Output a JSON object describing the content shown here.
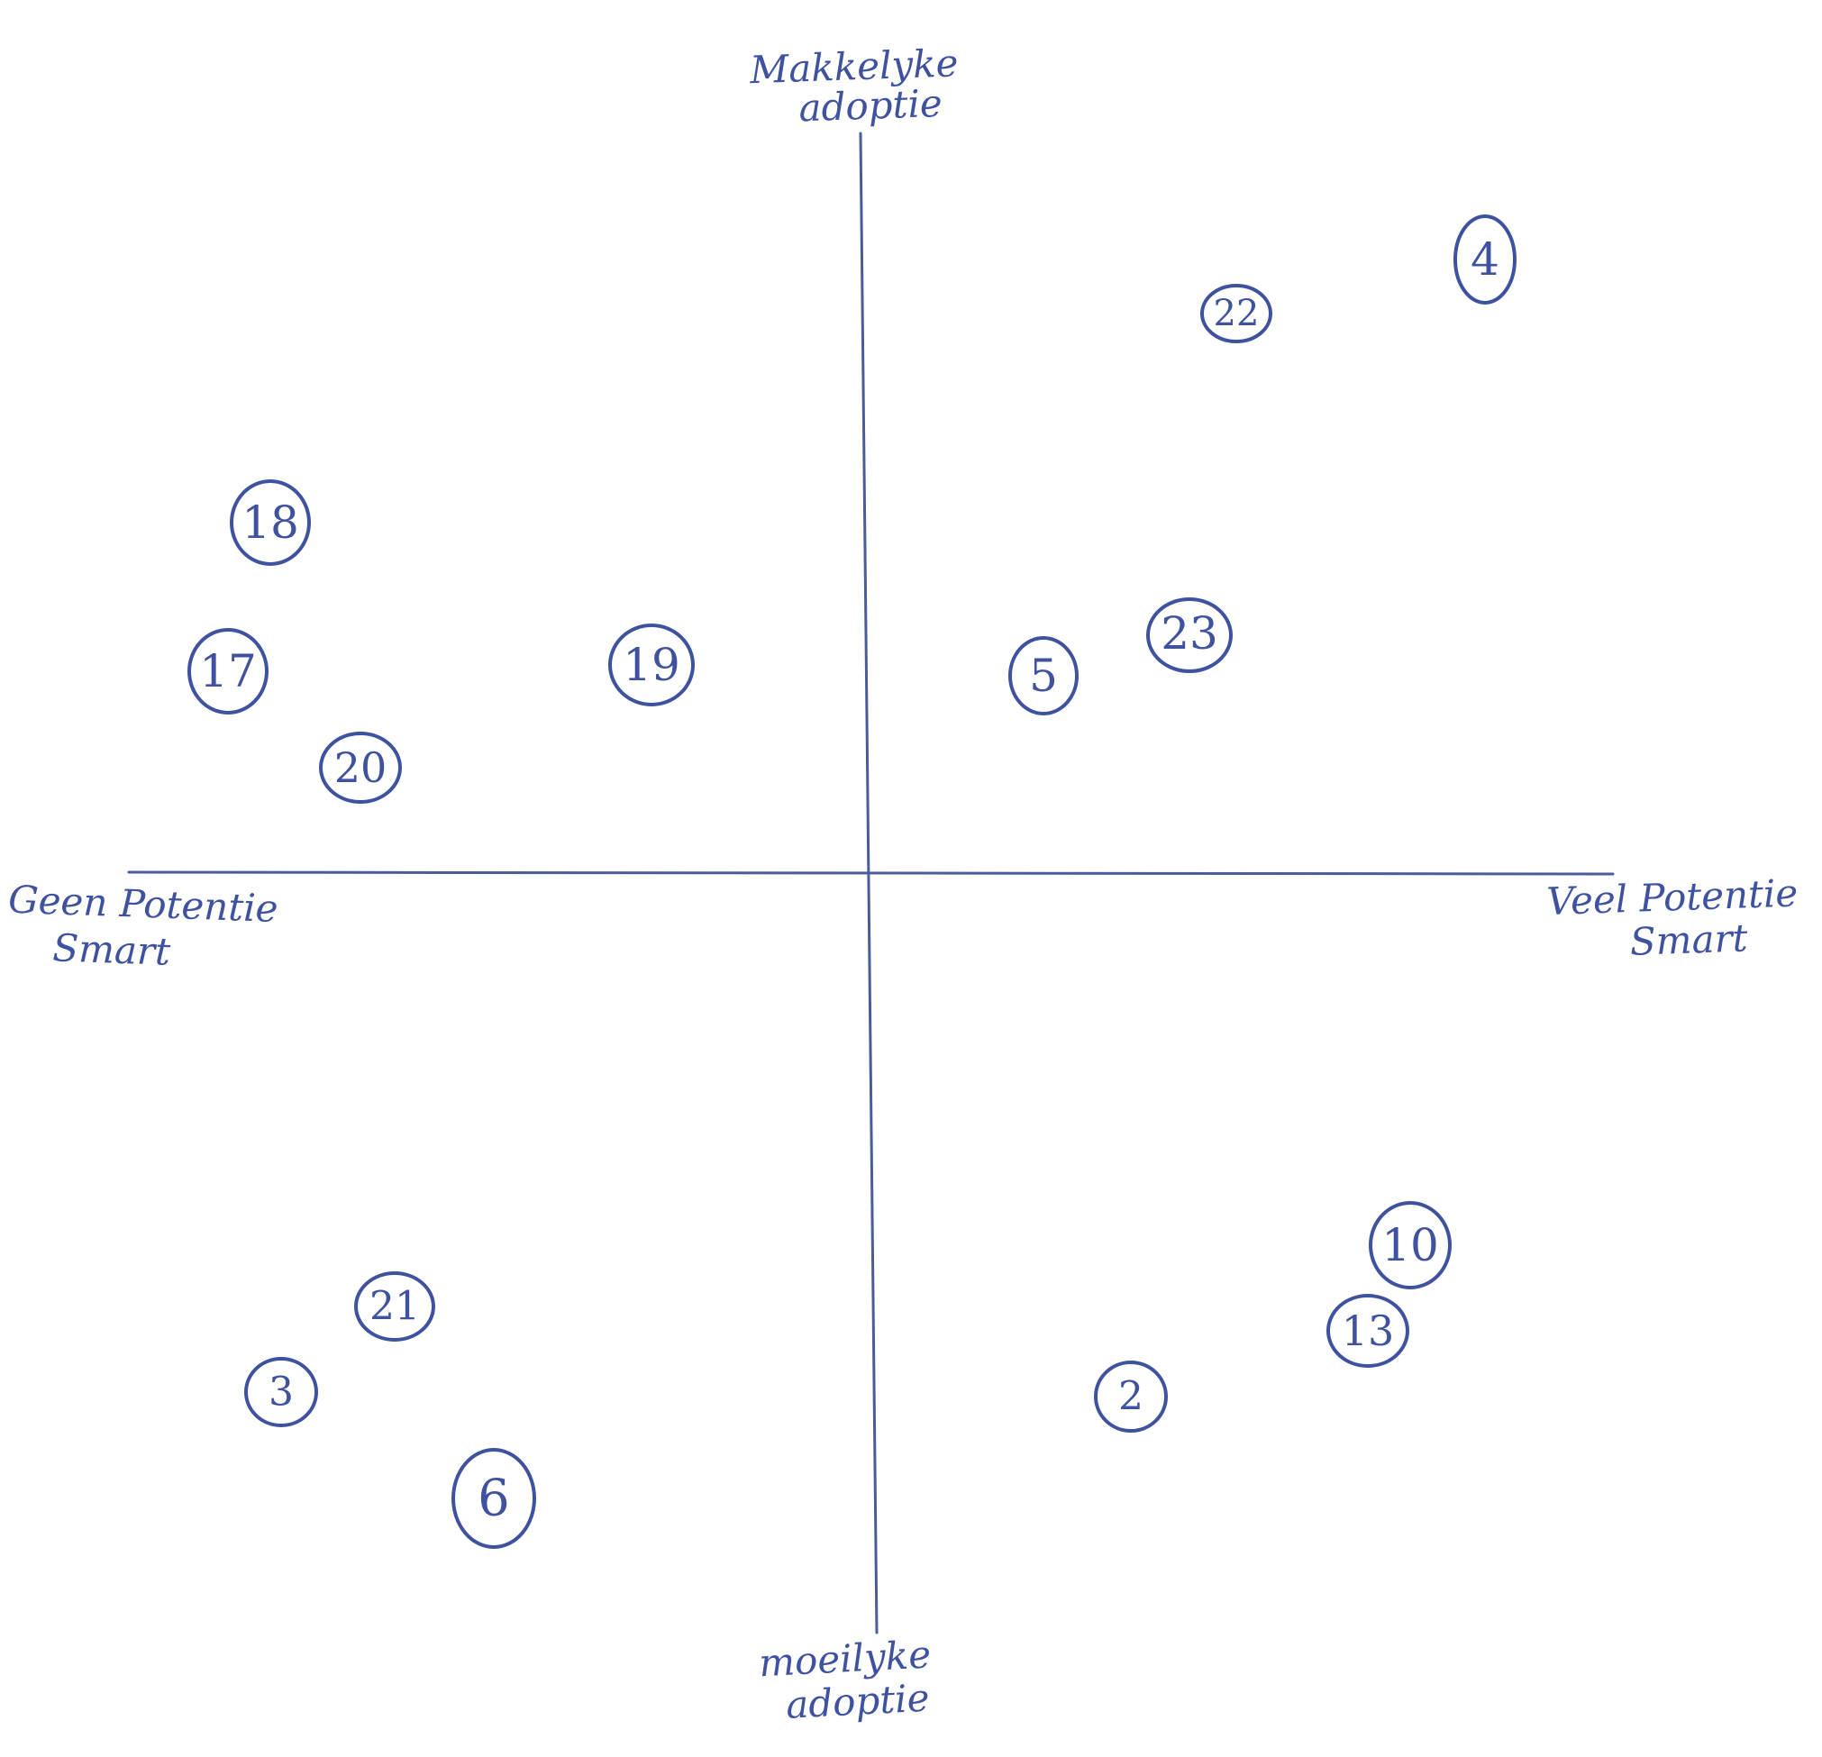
{
  "axes": {
    "top": {
      "line1": "Makkelyke",
      "line2": "adoptie"
    },
    "bottom": {
      "line1": "moeilyke",
      "line2": "adoptie"
    },
    "left": {
      "line1": "Geen Potentie",
      "line2": "Smart"
    },
    "right": {
      "line1": "Veel Potentie",
      "line2": "Smart"
    }
  },
  "colors": {
    "ink": "#3f52a0",
    "axis": "#4a5c99",
    "background": "#ffffff"
  },
  "nodes": [
    {
      "label": "4"
    },
    {
      "label": "22"
    },
    {
      "label": "18"
    },
    {
      "label": "23"
    },
    {
      "label": "17"
    },
    {
      "label": "19"
    },
    {
      "label": "5"
    },
    {
      "label": "20"
    },
    {
      "label": "10"
    },
    {
      "label": "21"
    },
    {
      "label": "13"
    },
    {
      "label": "3"
    },
    {
      "label": "2"
    },
    {
      "label": "6"
    }
  ]
}
